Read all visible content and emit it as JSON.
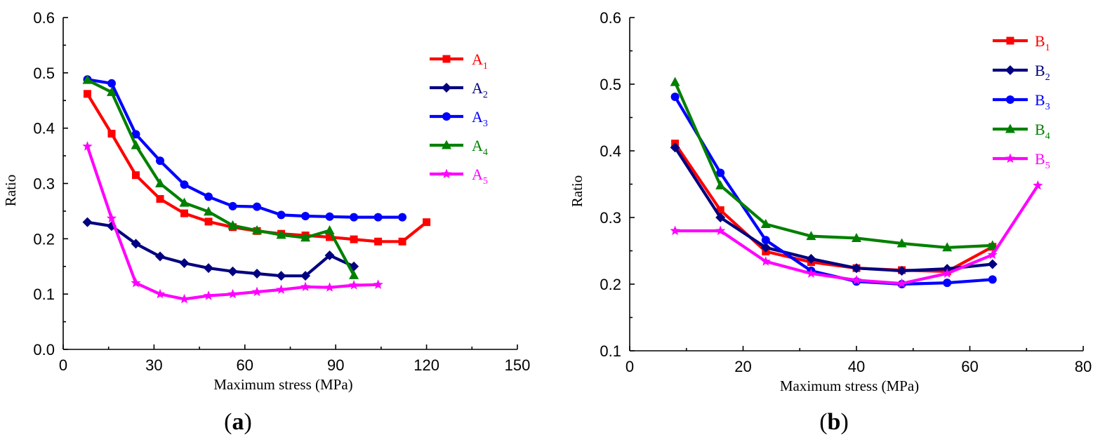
{
  "panel_labels": {
    "a_letter": "a",
    "b_letter": "b"
  },
  "chart_data": [
    {
      "type": "line",
      "panel": "a",
      "xlabel": "Maximum stress (MPa)",
      "ylabel": "Ratio",
      "xlim": [
        0,
        150
      ],
      "ylim": [
        0,
        0.6
      ],
      "xticks": [
        "0",
        "30",
        "60",
        "90",
        "120",
        "150"
      ],
      "yticks": [
        "0.0",
        "0.1",
        "0.2",
        "0.3",
        "0.4",
        "0.5",
        "0.6"
      ],
      "grid": false,
      "legend_position": "right",
      "series": [
        {
          "name": "A",
          "sub": "1",
          "color": "#ff0000",
          "marker": "square",
          "x": [
            8,
            16,
            24,
            32,
            40,
            48,
            56,
            64,
            72,
            80,
            88,
            96,
            104,
            112,
            120
          ],
          "y": [
            0.462,
            0.39,
            0.315,
            0.272,
            0.246,
            0.231,
            0.221,
            0.214,
            0.209,
            0.206,
            0.203,
            0.199,
            0.195,
            0.195,
            0.23
          ]
        },
        {
          "name": "A",
          "sub": "2",
          "color": "#000080",
          "marker": "diamond",
          "x": [
            8,
            16,
            24,
            32,
            40,
            48,
            56,
            64,
            72,
            80,
            88,
            96
          ],
          "y": [
            0.23,
            0.223,
            0.191,
            0.168,
            0.156,
            0.147,
            0.141,
            0.137,
            0.133,
            0.133,
            0.17,
            0.15
          ]
        },
        {
          "name": "A",
          "sub": "3",
          "color": "#0000ff",
          "marker": "circle",
          "x": [
            8,
            16,
            24,
            32,
            40,
            48,
            56,
            64,
            72,
            80,
            88,
            96,
            104,
            112
          ],
          "y": [
            0.488,
            0.481,
            0.389,
            0.341,
            0.298,
            0.276,
            0.259,
            0.258,
            0.243,
            0.241,
            0.24,
            0.239,
            0.239,
            0.239
          ]
        },
        {
          "name": "A",
          "sub": "4",
          "color": "#008000",
          "marker": "triangle",
          "x": [
            8,
            16,
            24,
            32,
            40,
            48,
            56,
            64,
            72,
            80,
            88,
            96
          ],
          "y": [
            0.487,
            0.465,
            0.369,
            0.3,
            0.265,
            0.249,
            0.224,
            0.215,
            0.207,
            0.202,
            0.215,
            0.134
          ]
        },
        {
          "name": "A",
          "sub": "5",
          "color": "#ff00ff",
          "marker": "star",
          "x": [
            8,
            16,
            24,
            32,
            40,
            48,
            56,
            64,
            72,
            80,
            88,
            96,
            104
          ],
          "y": [
            0.367,
            0.237,
            0.12,
            0.1,
            0.091,
            0.097,
            0.1,
            0.104,
            0.108,
            0.113,
            0.112,
            0.116,
            0.117
          ]
        }
      ]
    },
    {
      "type": "line",
      "panel": "b",
      "xlabel": "Maximum stress (MPa)",
      "ylabel": "Ratio",
      "xlim": [
        0,
        80
      ],
      "ylim": [
        0.1,
        0.6
      ],
      "xticks": [
        "0",
        "20",
        "40",
        "60",
        "80"
      ],
      "yticks": [
        "0.1",
        "0.2",
        "0.3",
        "0.4",
        "0.5",
        "0.6"
      ],
      "grid": false,
      "legend_position": "top-right",
      "series": [
        {
          "name": "B",
          "sub": "1",
          "color": "#ff0000",
          "marker": "square",
          "x": [
            8,
            16,
            24,
            32,
            40,
            48,
            56,
            64
          ],
          "y": [
            0.411,
            0.311,
            0.249,
            0.233,
            0.224,
            0.221,
            0.219,
            0.256
          ]
        },
        {
          "name": "B",
          "sub": "2",
          "color": "#000080",
          "marker": "diamond",
          "x": [
            8,
            16,
            24,
            32,
            40,
            48,
            56,
            64
          ],
          "y": [
            0.405,
            0.3,
            0.255,
            0.238,
            0.224,
            0.22,
            0.223,
            0.23
          ]
        },
        {
          "name": "B",
          "sub": "3",
          "color": "#0000ff",
          "marker": "circle",
          "x": [
            8,
            16,
            24,
            32,
            40,
            48,
            56,
            64
          ],
          "y": [
            0.481,
            0.367,
            0.266,
            0.22,
            0.204,
            0.2,
            0.202,
            0.207
          ]
        },
        {
          "name": "B",
          "sub": "4",
          "color": "#008000",
          "marker": "triangle",
          "x": [
            8,
            16,
            24,
            32,
            40,
            48,
            56,
            64
          ],
          "y": [
            0.503,
            0.348,
            0.29,
            0.272,
            0.269,
            0.261,
            0.255,
            0.258
          ]
        },
        {
          "name": "B",
          "sub": "5",
          "color": "#ff00ff",
          "marker": "star",
          "x": [
            8,
            16,
            24,
            32,
            40,
            48,
            56,
            64,
            72
          ],
          "y": [
            0.28,
            0.28,
            0.234,
            0.216,
            0.206,
            0.201,
            0.216,
            0.244,
            0.348
          ]
        }
      ]
    }
  ]
}
